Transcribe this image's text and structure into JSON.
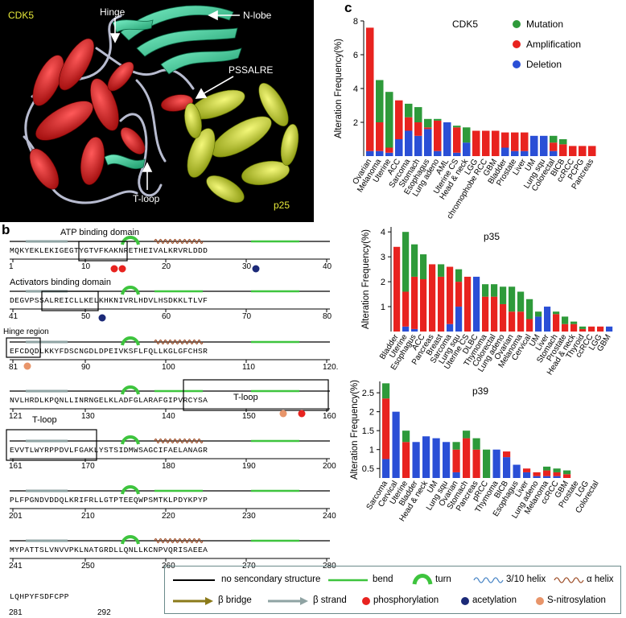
{
  "panel_labels": {
    "a": "a",
    "b": "b",
    "c": "c"
  },
  "structure_labels": {
    "cdk5": "CDK5",
    "hinge": "Hinge",
    "n_lobe": "N-lobe",
    "pssalre": "PSSALRE",
    "t_loop": "T-loop",
    "p25": "p25"
  },
  "sequence": {
    "domains": {
      "atp": "ATP binding domain",
      "activators": "Activators binding domain",
      "hinge": "Hinge region",
      "tloop_top": "T-loop",
      "tloop_bottom": "T-loop"
    },
    "rows": [
      {
        "seq": "MQKYEKLEKIGEGTYGTVFKAKNRETHEIVALKRVRLDDD",
        "nums": [
          "1",
          "10",
          "20",
          "30",
          "40"
        ]
      },
      {
        "seq": "DEGVPSSALREICLLKELKHKNIVRLHDVLHSDKKLTLVF",
        "nums": [
          "41",
          "50",
          "60",
          "70",
          "80"
        ]
      },
      {
        "seq": "EFCDQDLKKYFDSCNGDLDPEIVKSFLFQLLKGLGFCHSR",
        "nums": [
          "81",
          "90",
          "100",
          "110",
          "120."
        ]
      },
      {
        "seq": "NVLHRDLKPQNLLINRNGELKLADFGLARAFGIPVRCYSA",
        "nums": [
          "121",
          "130",
          "140",
          "150",
          "160"
        ]
      },
      {
        "seq": "EVVTLWYRPPDVLFGAKLYSTSIDMWSAGCIFAELANAGR",
        "nums": [
          "161",
          "170",
          "180",
          "190",
          "200"
        ]
      },
      {
        "seq": "PLFPGNDVDDQLKRIFRLLGTPTEEQWPSMTKLPDYKPYP",
        "nums": [
          "201",
          "210",
          "220",
          "230",
          "240"
        ]
      },
      {
        "seq": "MYPATTSLVNVVPKLNATGRDLLQNLLKCNPVQRISAEEA",
        "nums": [
          "241",
          "250",
          "260",
          "270",
          "280"
        ]
      },
      {
        "seq": "LQHPYFSDFCPP",
        "nums": [
          "281",
          "292"
        ]
      }
    ]
  },
  "legend": {
    "no_ss": "no sencondary structure",
    "bend": "bend",
    "turn": "turn",
    "helix310": "3/10 helix",
    "ahelix": "α helix",
    "bbridge": "β bridge",
    "bstrand": "β strand",
    "phos": "phosphorylation",
    "acet": "acetylation",
    "snitro": "S-nitrosylation"
  },
  "colors": {
    "mutation": "#2e9a3a",
    "amplification": "#e8231f",
    "deletion": "#2a4fd6",
    "phosphorylation": "#e8231f",
    "acetylation": "#1c2a78",
    "s_nitrosylation": "#e8956a",
    "bend": "#3ec43e",
    "helix": "#a0522d",
    "helix310": "#4a86c6",
    "strand": "#8fa3a3",
    "bridge": "#8b7a1a"
  },
  "chart_data": [
    {
      "type": "bar",
      "stacked": true,
      "title": "CDK5",
      "ylabel": "Alteration Frequency(%)",
      "ylim": [
        0,
        8
      ],
      "yticks": [
        "2",
        "4",
        "6",
        "8"
      ],
      "legend": [
        "Mutation",
        "Amplification",
        "Deletion"
      ],
      "legend_position": "top-right",
      "categories": [
        "Ovarian",
        "Melanoma",
        "Uterine",
        "ACC",
        "Sarcoma",
        "Stomach",
        "Esophagus",
        "Lung adeno",
        "AML",
        "Uterine CS",
        "Head & neck",
        "LGG",
        "chromophobe RCC",
        "GBM",
        "Bladder",
        "Prostate",
        "Liver",
        "UM",
        "Lung squ",
        "Colorectal",
        "BICB",
        "ccRCC",
        "PCPG",
        "Pancreas"
      ],
      "series": [
        {
          "name": "Deletion",
          "values": [
            0.3,
            0.3,
            0.2,
            1.0,
            1.5,
            1.2,
            1.6,
            0.3,
            2.0,
            0.2,
            0.8,
            0,
            0,
            0,
            0.5,
            0.3,
            0.3,
            1.2,
            1.2,
            0.3,
            0,
            0,
            0,
            0
          ]
        },
        {
          "name": "Amplification",
          "values": [
            7.3,
            1.7,
            0.3,
            2.3,
            0.8,
            0.8,
            0.1,
            1.8,
            0,
            1.5,
            0,
            1.5,
            1.5,
            1.5,
            0.9,
            1.1,
            1.1,
            0,
            0,
            0.5,
            0.7,
            0.6,
            0.6,
            0.6
          ]
        },
        {
          "name": "Mutation",
          "values": [
            0,
            2.5,
            3.3,
            0,
            0.8,
            0.9,
            0.5,
            0.1,
            0,
            0.1,
            0.9,
            0,
            0,
            0,
            0,
            0,
            0,
            0,
            0,
            0.4,
            0.3,
            0,
            0,
            0
          ]
        }
      ]
    },
    {
      "type": "bar",
      "stacked": true,
      "title": "p35",
      "ylabel": "Alteration Frequency(%)",
      "ylim": [
        0,
        4.2
      ],
      "yticks": [
        "1",
        "2",
        "3",
        "4"
      ],
      "categories": [
        "Bladder",
        "Uterine",
        "Esophagus",
        "ACC",
        "Pancreas",
        "Breast",
        "Sarcoma",
        "Lung squ",
        "Uterine CS",
        "DLBC",
        "Thymoma",
        "Colorectal",
        "Lung adeno",
        "Ovarian",
        "Melanoma",
        "Cervical",
        "UM",
        "Liver",
        "Stomach",
        "Prostate",
        "Head & neck",
        "Thyroid",
        "ccRCC",
        "LGG",
        "GBM"
      ],
      "series": [
        {
          "name": "Deletion",
          "values": [
            0,
            0.2,
            0.1,
            0,
            0,
            0,
            0.3,
            1.0,
            0,
            2.2,
            0,
            0,
            0,
            0,
            0,
            0,
            0.6,
            1.0,
            0,
            0,
            0,
            0,
            0,
            0,
            0.2
          ]
        },
        {
          "name": "Amplification",
          "values": [
            3.4,
            1.4,
            2.1,
            2.1,
            2.7,
            2.2,
            2.3,
            1.0,
            2.2,
            0,
            1.4,
            1.4,
            1.1,
            0.8,
            0.8,
            0.5,
            0,
            0,
            0.7,
            0.3,
            0.3,
            0.1,
            0.2,
            0.2,
            0
          ]
        },
        {
          "name": "Mutation",
          "values": [
            0,
            2.4,
            1.3,
            1.0,
            0,
            0.5,
            0,
            0.5,
            0,
            0,
            0.5,
            0.5,
            0.7,
            1.0,
            0.8,
            0.8,
            0.2,
            0,
            0.1,
            0.3,
            0.1,
            0.1,
            0,
            0,
            0
          ]
        }
      ]
    },
    {
      "type": "bar",
      "stacked": true,
      "title": "p39",
      "ylabel": "Alteration Frequency(%)",
      "ylim": [
        0.25,
        2.8
      ],
      "yticks": [
        "0.5",
        "1",
        "1.5",
        "2",
        "2.5"
      ],
      "categories": [
        "Sarcoma",
        "Cervical",
        "Uterine",
        "Bladder",
        "Head & neck",
        "UM",
        "Lung squ",
        "Ovarian",
        "Stomach",
        "Pancreas",
        "pRCC",
        "Thymoma",
        "BICB",
        "Esophagus",
        "Liver",
        "Lung adeno",
        "Melanoma",
        "ccRCC",
        "GBM",
        "Prostate",
        "LGG",
        "Colorectal"
      ],
      "series": [
        {
          "name": "Deletion",
          "values": [
            0.75,
            2.0,
            0.2,
            1.2,
            1.35,
            1.3,
            1.2,
            0.4,
            0.1,
            0,
            0,
            1.0,
            0.8,
            0.6,
            0.4,
            0.3,
            0.3,
            0.3,
            0.2,
            0.2,
            0.2,
            0
          ]
        },
        {
          "name": "Amplification",
          "values": [
            1.6,
            0,
            1.0,
            0,
            0,
            0,
            0,
            0.6,
            1.2,
            1.0,
            0,
            0,
            0.15,
            0,
            0.1,
            0.1,
            0.15,
            0.1,
            0.15,
            0,
            0,
            0
          ]
        },
        {
          "name": "Mutation",
          "values": [
            0.4,
            0,
            0.3,
            0,
            0,
            0,
            0,
            0.2,
            0.2,
            0.3,
            1.0,
            0,
            0,
            0,
            0,
            0,
            0.1,
            0.1,
            0.1,
            0,
            0,
            0.1
          ]
        }
      ]
    }
  ]
}
